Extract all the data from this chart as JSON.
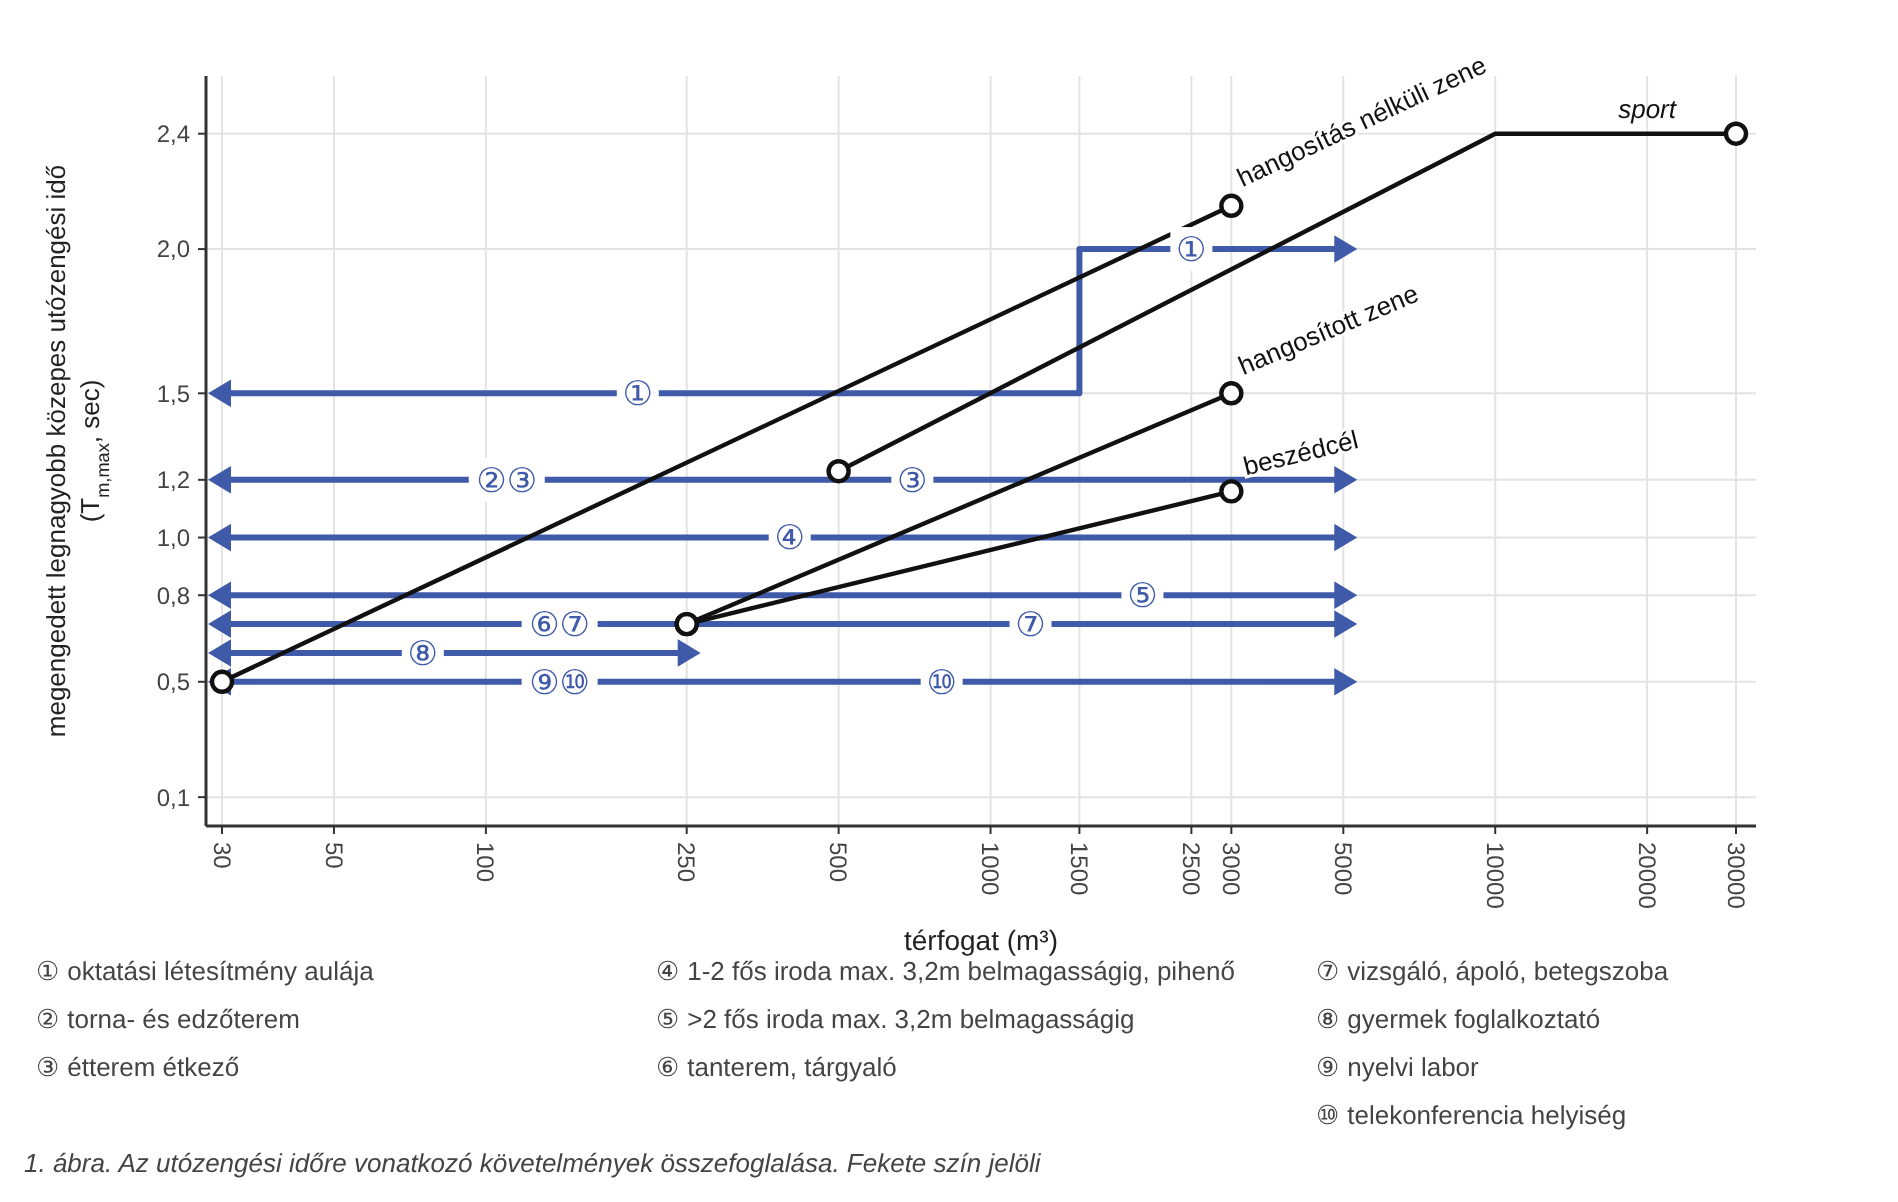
{
  "chart_data": {
    "type": "line",
    "xlabel": "térfogat (m³)",
    "ylabel": "megengedett legnagyobb közepes utózengési idő (T$_{m,max}$, sec)",
    "log": "x",
    "xlim": [
      30,
      30000
    ],
    "xticks": [
      30,
      50,
      100,
      250,
      500,
      1000,
      1500,
      2500,
      3000,
      5000,
      10000,
      20000,
      30000
    ],
    "ylim": [
      0,
      2.6
    ],
    "yticks": [
      {
        "value": 0.1,
        "label": "0,1"
      },
      {
        "value": 0.5,
        "label": "0,5"
      },
      {
        "value": 0.8,
        "label": "0,8"
      },
      {
        "value": 1.0,
        "label": "1,0"
      },
      {
        "value": 1.2,
        "label": "1,2"
      },
      {
        "value": 1.5,
        "label": "1,5"
      },
      {
        "value": 2.0,
        "label": "2,0"
      },
      {
        "value": 2.4,
        "label": "2,4"
      }
    ],
    "grid": true,
    "series": [
      {
        "color": "#3f5aa8",
        "marker": "triangle",
        "x": [
          30,
          1500,
          1500,
          5000
        ],
        "values": [
          1.5,
          1.5,
          2.0,
          2.0
        ]
      },
      {
        "color": "#3f5aa8",
        "marker": "triangle",
        "x": [
          30,
          5000
        ],
        "values": [
          1.2,
          1.2
        ]
      },
      {
        "color": "#3f5aa8",
        "marker": "triangle",
        "x": [
          30,
          5000
        ],
        "values": [
          1.0,
          1.0
        ]
      },
      {
        "color": "#3f5aa8",
        "marker": "triangle",
        "x": [
          30,
          5000
        ],
        "values": [
          0.8,
          0.8
        ]
      },
      {
        "color": "#3f5aa8",
        "marker": "triangle",
        "x": [
          30,
          5000
        ],
        "values": [
          0.7,
          0.7
        ]
      },
      {
        "color": "#3f5aa8",
        "marker": "triangle",
        "x": [
          30,
          250
        ],
        "values": [
          0.6,
          0.6
        ]
      },
      {
        "color": "#3f5aa8",
        "marker": "triangle",
        "x": [
          30,
          5000
        ],
        "values": [
          0.5,
          0.5
        ]
      },
      {
        "name": "hangosítás nélküli zene",
        "color": "#111111",
        "marker": "circle",
        "x": [
          30,
          3000
        ],
        "values": [
          0.5,
          2.15
        ]
      },
      {
        "name": "sport",
        "color": "#111111",
        "marker": "circle",
        "x": [
          500,
          10000,
          30000
        ],
        "values": [
          1.23,
          2.4,
          2.4
        ]
      },
      {
        "name": "hangosított zene",
        "color": "#111111",
        "marker": "circle",
        "x": [
          250,
          3000
        ],
        "values": [
          0.7,
          1.5
        ]
      },
      {
        "name": "beszédcél",
        "color": "#111111",
        "marker": "circle",
        "x": [
          250,
          3000
        ],
        "values": [
          0.7,
          1.16
        ]
      }
    ],
    "annotations": [
      {
        "text": "①",
        "x": 200,
        "y": 1.5
      },
      {
        "text": "①",
        "x": 2500,
        "y": 2.0
      },
      {
        "text": "②③",
        "x": 110,
        "y": 1.2
      },
      {
        "text": "③",
        "x": 700,
        "y": 1.2
      },
      {
        "text": "④",
        "x": 400,
        "y": 1.0
      },
      {
        "text": "⑤",
        "x": 2000,
        "y": 0.8
      },
      {
        "text": "⑥⑦",
        "x": 140,
        "y": 0.7
      },
      {
        "text": "⑦",
        "x": 1200,
        "y": 0.7
      },
      {
        "text": "⑧",
        "x": 75,
        "y": 0.6
      },
      {
        "text": "⑨⑩",
        "x": 140,
        "y": 0.5
      },
      {
        "text": "⑩",
        "x": 800,
        "y": 0.5
      },
      "① oktatási létesítmény aulája",
      "② torna- és edzőterem",
      "③ étterem étkező",
      "④ 1-2 fős iroda max. 3,2m belmagasságig, pihenő",
      "⑤ >2 fős iroda max. 3,2m belmagasságig",
      "⑥ tanterem, tárgyaló",
      "⑦ vizsgáló, ápoló, betegszoba",
      "⑧ gyermek foglalkoztató",
      "⑨ nyelvi labor",
      "⑩ telekonferencia helyiség",
      "1. ábra. Az utózengési időre vonatkozó követelmények összefoglalása. Fekete szín jelöli"
    ]
  }
}
